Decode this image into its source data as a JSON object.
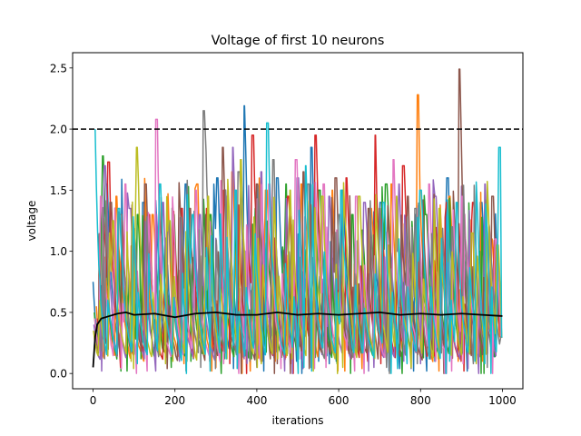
{
  "chart_data": {
    "type": "line",
    "title": "Voltage of first 10 neurons",
    "xlabel": "iterations",
    "ylabel": "voltage",
    "xlim": [
      -50,
      1050
    ],
    "ylim": [
      -0.125,
      2.625
    ],
    "xticks": [
      0,
      200,
      400,
      600,
      800,
      1000
    ],
    "yticks": [
      0.0,
      0.5,
      1.0,
      1.5,
      2.0,
      2.5
    ],
    "xtick_labels": [
      "0",
      "200",
      "400",
      "600",
      "800",
      "1000"
    ],
    "ytick_labels": [
      "0.0",
      "0.5",
      "1.0",
      "1.5",
      "2.0",
      "2.5"
    ],
    "threshold": {
      "y": 2.0,
      "style": "dashed",
      "color": "#000000"
    },
    "grid": false,
    "legend": "none",
    "n_iterations": 1000,
    "series": [
      {
        "color": "#1f77b4",
        "peaks": [
          [
            0,
            0.75
          ],
          [
            35,
            1.55
          ],
          [
            125,
            1.4
          ],
          [
            228,
            1.55
          ],
          [
            305,
            1.6
          ],
          [
            370,
            2.19
          ],
          [
            452,
            1.6
          ],
          [
            535,
            1.85
          ],
          [
            612,
            1.5
          ],
          [
            705,
            1.4
          ],
          [
            790,
            1.3
          ],
          [
            868,
            1.6
          ],
          [
            950,
            1.4
          ]
        ]
      },
      {
        "color": "#ff7f0e",
        "peaks": [
          [
            8,
            0.55
          ],
          [
            58,
            1.45
          ],
          [
            147,
            1.3
          ],
          [
            256,
            1.55
          ],
          [
            342,
            1.65
          ],
          [
            425,
            1.5
          ],
          [
            510,
            1.55
          ],
          [
            585,
            1.5
          ],
          [
            680,
            1.35
          ],
          [
            730,
            1.55
          ],
          [
            795,
            2.28
          ],
          [
            872,
            1.45
          ],
          [
            975,
            1.1
          ]
        ]
      },
      {
        "color": "#2ca02c",
        "peaks": [
          [
            3,
            0.5
          ],
          [
            25,
            1.78
          ],
          [
            110,
            1.3
          ],
          [
            198,
            1.3
          ],
          [
            288,
            1.3
          ],
          [
            398,
            1.35
          ],
          [
            472,
            1.55
          ],
          [
            555,
            1.5
          ],
          [
            635,
            1.3
          ],
          [
            718,
            1.55
          ],
          [
            815,
            1.3
          ],
          [
            905,
            1.05
          ],
          [
            988,
            1.0
          ]
        ]
      },
      {
        "color": "#d62728",
        "peaks": [
          [
            10,
            0.45
          ],
          [
            40,
            1.73
          ],
          [
            138,
            1.3
          ],
          [
            218,
            1.35
          ],
          [
            322,
            1.5
          ],
          [
            392,
            1.95
          ],
          [
            478,
            1.45
          ],
          [
            545,
            1.95
          ],
          [
            620,
            1.6
          ],
          [
            690,
            1.95
          ],
          [
            760,
            1.7
          ],
          [
            865,
            1.4
          ],
          [
            930,
            1.4
          ]
        ]
      },
      {
        "color": "#9467bd",
        "peaks": [
          [
            2,
            0.4
          ],
          [
            30,
            1.7
          ],
          [
            92,
            1.35
          ],
          [
            172,
            1.4
          ],
          [
            262,
            1.3
          ],
          [
            342,
            1.85
          ],
          [
            412,
            1.65
          ],
          [
            502,
            1.6
          ],
          [
            578,
            1.45
          ],
          [
            665,
            1.4
          ],
          [
            748,
            1.55
          ],
          [
            838,
            1.45
          ],
          [
            958,
            1.55
          ]
        ]
      },
      {
        "color": "#8c564b",
        "peaks": [
          [
            6,
            0.35
          ],
          [
            45,
            1.4
          ],
          [
            130,
            1.55
          ],
          [
            238,
            1.35
          ],
          [
            318,
            1.85
          ],
          [
            402,
            1.55
          ],
          [
            515,
            1.65
          ],
          [
            595,
            1.6
          ],
          [
            675,
            1.35
          ],
          [
            770,
            1.45
          ],
          [
            896,
            2.49
          ],
          [
            978,
            1.45
          ]
        ]
      },
      {
        "color": "#e377c2",
        "peaks": [
          [
            4,
            0.45
          ],
          [
            20,
            1.45
          ],
          [
            80,
            1.55
          ],
          [
            157,
            2.08
          ],
          [
            252,
            1.5
          ],
          [
            330,
            1.45
          ],
          [
            432,
            1.55
          ],
          [
            498,
            1.75
          ],
          [
            565,
            1.55
          ],
          [
            645,
            1.45
          ],
          [
            735,
            1.75
          ],
          [
            822,
            1.55
          ],
          [
            902,
            1.45
          ],
          [
            985,
            1.1
          ]
        ]
      },
      {
        "color": "#7f7f7f",
        "peaks": [
          [
            12,
            0.4
          ],
          [
            70,
            1.3
          ],
          [
            185,
            1.25
          ],
          [
            272,
            2.15
          ],
          [
            358,
            1.65
          ],
          [
            442,
            1.75
          ],
          [
            528,
            1.55
          ],
          [
            602,
            1.3
          ],
          [
            702,
            1.35
          ],
          [
            790,
            1.35
          ],
          [
            878,
            1.2
          ],
          [
            968,
            1.2
          ]
        ]
      },
      {
        "color": "#bcbd22",
        "peaks": [
          [
            1,
            0.35
          ],
          [
            50,
            1.25
          ],
          [
            108,
            1.85
          ],
          [
            188,
            1.25
          ],
          [
            282,
            1.45
          ],
          [
            362,
            1.75
          ],
          [
            482,
            1.5
          ],
          [
            562,
            1.45
          ],
          [
            652,
            1.45
          ],
          [
            742,
            1.45
          ],
          [
            848,
            1.35
          ],
          [
            928,
            1.15
          ],
          [
            990,
            1.05
          ]
        ]
      },
      {
        "color": "#17becf",
        "peaks": [
          [
            5,
            2.0
          ],
          [
            65,
            1.35
          ],
          [
            165,
            1.55
          ],
          [
            245,
            1.3
          ],
          [
            350,
            1.5
          ],
          [
            428,
            2.05
          ],
          [
            520,
            1.7
          ],
          [
            608,
            1.5
          ],
          [
            712,
            1.4
          ],
          [
            802,
            1.5
          ],
          [
            890,
            1.4
          ],
          [
            995,
            1.85
          ]
        ]
      }
    ],
    "mean_series": {
      "color": "#000000",
      "x": [
        0,
        5,
        10,
        20,
        40,
        60,
        80,
        100,
        150,
        200,
        250,
        300,
        350,
        400,
        450,
        500,
        550,
        600,
        650,
        700,
        750,
        800,
        850,
        900,
        950,
        1000
      ],
      "y": [
        0.05,
        0.3,
        0.4,
        0.45,
        0.47,
        0.49,
        0.5,
        0.48,
        0.49,
        0.46,
        0.49,
        0.5,
        0.48,
        0.48,
        0.5,
        0.48,
        0.49,
        0.48,
        0.49,
        0.5,
        0.48,
        0.49,
        0.48,
        0.49,
        0.48,
        0.47
      ]
    }
  }
}
